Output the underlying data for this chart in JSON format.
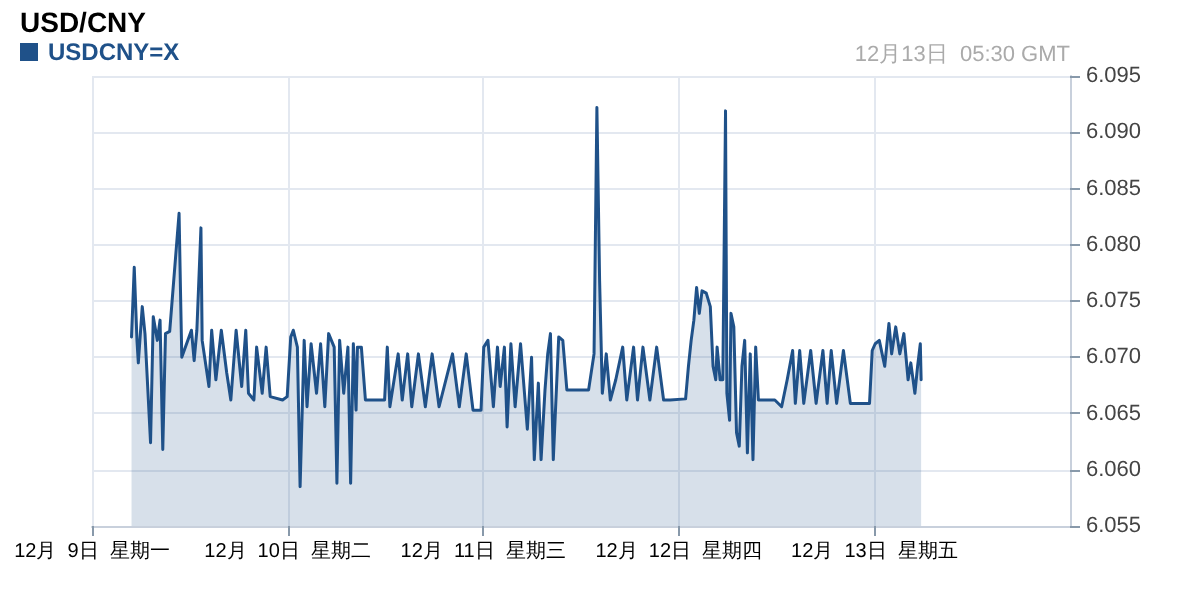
{
  "chart_data": {
    "type": "area",
    "title": "USD/CNY",
    "annotations": [
      "12月13日  05:30 GMT"
    ],
    "legend": "top left",
    "grid": true,
    "marker": "none",
    "xlim": [
      "--12-09",
      "--12-14"
    ],
    "xticks": [
      {
        "value": "--12-09",
        "label": "12月  9日  星期一"
      },
      {
        "value": "--12-10",
        "label": "12月  10日  星期二"
      },
      {
        "value": "--12-11",
        "label": "12月  11日  星期三"
      },
      {
        "value": "--12-12",
        "label": "12月  12日  星期四"
      },
      {
        "value": "--12-13",
        "label": "12月  13日  星期五"
      }
    ],
    "ylim": [
      6.055,
      6.095
    ],
    "yticks": [
      6.055,
      {
        "value": 6.06,
        "label": "6.060"
      },
      6.065,
      {
        "value": 6.07,
        "label": "6.070"
      },
      6.075,
      {
        "value": 6.08,
        "label": "6.080"
      },
      6.085,
      {
        "value": 6.09,
        "label": "6.090"
      },
      6.095
    ],
    "series": [
      {
        "name": "USDCNY=X",
        "color": "#1f5189",
        "x": [
          "--12-09T04:51",
          "--12-09T05:11",
          "--12-09T05:31",
          "--12-09T05:41",
          "--12-09T06:10",
          "--12-09T06:30",
          "--12-09T07:11",
          "--12-09T07:31",
          "--12-09T08:01",
          "--12-09T08:21",
          "--12-09T08:41",
          "--12-09T09:01",
          "--12-09T09:32",
          "--12-09T10:41",
          "--12-09T10:51",
          "--12-09T11:01",
          "--12-09T12:12",
          "--12-09T12:32",
          "--12-09T12:52",
          "--12-09T13:22",
          "--12-09T13:31",
          "--12-09T14:21",
          "--12-09T14:41",
          "--12-09T15:12",
          "--12-09T15:52",
          "--12-09T16:32",
          "--12-09T17:02",
          "--12-09T17:41",
          "--12-09T18:22",
          "--12-09T18:52",
          "--12-09T19:12",
          "--12-09T19:52",
          "--12-09T20:12",
          "--12-09T20:53",
          "--12-09T21:22",
          "--12-09T21:52",
          "--12-09T23:23",
          "--12-09T23:57",
          "--12-10T00:23",
          "--12-10T00:42",
          "--12-10T01:12",
          "--12-10T01:32",
          "--12-10T02:02",
          "--12-10T02:23",
          "--12-10T02:53",
          "--12-10T03:33",
          "--12-10T04:03",
          "--12-10T04:34",
          "--12-10T05:02",
          "--12-10T05:43",
          "--12-10T06:03",
          "--12-10T06:23",
          "--12-10T06:53",
          "--12-10T07:24",
          "--12-10T07:44",
          "--12-10T08:04",
          "--12-10T08:24",
          "--12-10T08:34",
          "--12-10T09:03",
          "--12-10T09:33",
          "--12-10T11:54",
          "--12-10T12:14",
          "--12-10T12:33",
          "--12-10T13:34",
          "--12-10T14:04",
          "--12-10T14:44",
          "--12-10T15:14",
          "--12-10T16:03",
          "--12-10T16:54",
          "--12-10T17:44",
          "--12-10T18:35",
          "--12-10T20:14",
          "--12-10T21:04",
          "--12-10T21:55",
          "--12-10T22:45",
          "--12-10T23:44",
          "--12-11T00:04",
          "--12-11T00:35",
          "--12-11T01:15",
          "--12-11T01:45",
          "--12-11T02:05",
          "--12-11T02:36",
          "--12-11T02:56",
          "--12-11T03:24",
          "--12-11T03:55",
          "--12-11T04:35",
          "--12-11T05:25",
          "--12-11T05:56",
          "--12-11T06:16",
          "--12-11T06:46",
          "--12-11T07:06",
          "--12-11T07:35",
          "--12-11T07:55",
          "--12-11T08:15",
          "--12-11T08:36",
          "--12-11T09:16",
          "--12-11T09:46",
          "--12-11T10:16",
          "--12-11T12:56",
          "--12-11T13:36",
          "--12-11T13:57",
          "--12-11T14:17",
          "--12-11T14:37",
          "--12-11T15:06",
          "--12-11T15:36",
          "--12-11T16:16",
          "--12-11T17:07",
          "--12-11T17:37",
          "--12-11T18:27",
          "--12-11T18:56",
          "--12-11T19:36",
          "--12-11T20:27",
          "--12-11T21:17",
          "--12-11T22:08",
          "--12-11T22:57",
          "--12-12T00:50",
          "--12-12T01:11",
          "--12-12T01:31",
          "--12-12T01:51",
          "--12-12T02:11",
          "--12-12T02:31",
          "--12-12T02:51",
          "--12-12T03:22",
          "--12-12T03:52",
          "--12-12T04:12",
          "--12-12T04:32",
          "--12-12T04:42",
          "--12-12T05:04",
          "--12-12T05:24",
          "--12-12T05:44",
          "--12-12T05:54",
          "--12-12T06:14",
          "--12-12T06:24",
          "--12-12T06:45",
          "--12-12T07:05",
          "--12-12T07:25",
          "--12-12T07:45",
          "--12-12T08:05",
          "--12-12T08:25",
          "--12-12T08:46",
          "--12-12T09:06",
          "--12-12T09:26",
          "--12-12T09:46",
          "--12-12T10:57",
          "--12-12T11:47",
          "--12-12T12:37",
          "--12-12T13:18",
          "--12-12T13:58",
          "--12-12T14:18",
          "--12-12T14:50",
          "--12-12T15:20",
          "--12-12T16:11",
          "--12-12T16:51",
          "--12-12T17:41",
          "--12-12T18:12",
          "--12-12T18:42",
          "--12-12T19:22",
          "--12-12T20:12",
          "--12-12T21:03",
          "--12-12T23:24",
          "--12-12T23:44",
          "--12-13T00:06",
          "--12-13T00:36",
          "--12-13T01:16",
          "--12-13T01:47",
          "--12-13T02:07",
          "--12-13T02:37",
          "--12-13T03:07",
          "--12-13T03:37",
          "--12-13T04:08",
          "--12-13T04:28",
          "--12-13T04:58",
          "--12-13T05:18",
          "--12-13T05:38",
          "--12-13T05:44"
        ],
        "values": [
          6.0718,
          6.078,
          6.0715,
          6.0695,
          6.0745,
          6.0721,
          6.0624,
          6.0736,
          6.0715,
          6.0733,
          6.0618,
          6.0721,
          6.0723,
          6.0828,
          6.0762,
          6.07,
          6.0724,
          6.0697,
          6.0724,
          6.0815,
          6.0715,
          6.0674,
          6.0724,
          6.068,
          6.0724,
          6.0686,
          6.0662,
          6.0724,
          6.0674,
          6.0724,
          6.0668,
          6.0662,
          6.0709,
          6.0668,
          6.0709,
          6.0665,
          6.0662,
          6.0665,
          6.0718,
          6.0724,
          6.0709,
          6.0585,
          6.0715,
          6.0656,
          6.0712,
          6.0668,
          6.0712,
          6.0656,
          6.0721,
          6.0709,
          6.0588,
          6.0715,
          6.0668,
          6.0709,
          6.0588,
          6.0712,
          6.0653,
          6.0709,
          6.0709,
          6.0662,
          6.0662,
          6.0709,
          6.0656,
          6.0703,
          6.0662,
          6.0703,
          6.0656,
          6.0703,
          6.0656,
          6.0703,
          6.0656,
          6.0703,
          6.0656,
          6.0703,
          6.0653,
          6.0653,
          6.0709,
          6.0715,
          6.0656,
          6.0709,
          6.0674,
          6.0709,
          6.0638,
          6.0712,
          6.0656,
          6.0712,
          6.0636,
          6.07,
          6.0609,
          6.0677,
          6.0609,
          6.0671,
          6.0703,
          6.0721,
          6.0609,
          6.0718,
          6.0715,
          6.0671,
          6.0671,
          6.0703,
          6.0922,
          6.0768,
          6.0668,
          6.0703,
          6.0662,
          6.068,
          6.0709,
          6.0662,
          6.0709,
          6.0662,
          6.0709,
          6.0662,
          6.0709,
          6.0662,
          6.0662,
          6.0663,
          6.0692,
          6.0715,
          6.0733,
          6.0762,
          6.0739,
          6.0759,
          6.0757,
          6.0745,
          6.0692,
          6.068,
          6.0709,
          6.068,
          6.068,
          6.0919,
          6.0668,
          6.0644,
          6.0739,
          6.0727,
          6.0633,
          6.0621,
          6.0692,
          6.0715,
          6.0615,
          6.0703,
          6.0609,
          6.0709,
          6.0662,
          6.0662,
          6.0662,
          6.0656,
          6.068,
          6.0706,
          6.0659,
          6.0706,
          6.0659,
          6.0706,
          6.0659,
          6.0706,
          6.0659,
          6.0706,
          6.0659,
          6.0706,
          6.0659,
          6.0659,
          6.0706,
          6.0712,
          6.0715,
          6.0692,
          6.073,
          6.0703,
          6.0727,
          6.0703,
          6.0721,
          6.068,
          6.0695,
          6.0668,
          6.0692,
          6.0712,
          6.068
        ]
      }
    ]
  }
}
